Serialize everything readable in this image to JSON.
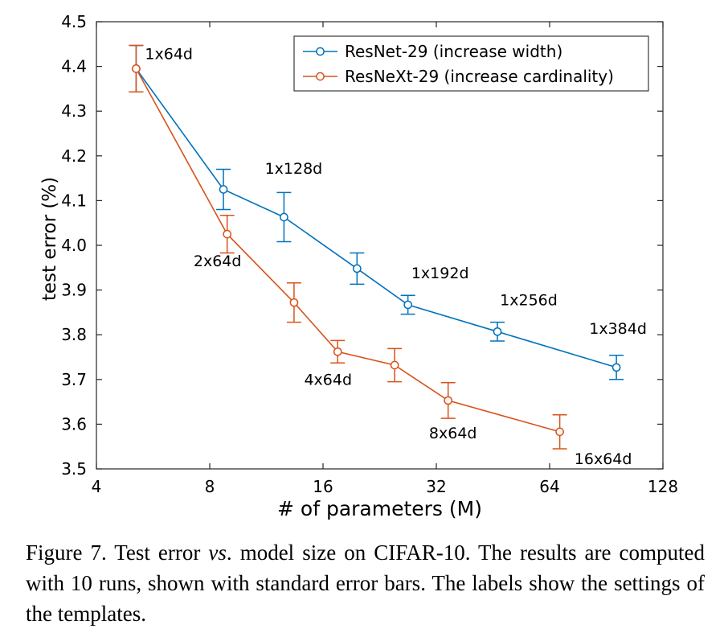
{
  "chart_data": {
    "type": "line",
    "xlabel": "# of parameters (M)",
    "ylabel": "test error (%)",
    "xscale": "log2",
    "xlim": [
      4,
      128
    ],
    "ylim": [
      3.5,
      4.5
    ],
    "xticks": [
      4,
      8,
      16,
      32,
      64,
      128
    ],
    "yticks": [
      3.5,
      3.6,
      3.7,
      3.8,
      3.9,
      4.0,
      4.1,
      4.2,
      4.3,
      4.4,
      4.5
    ],
    "ytick_labels": [
      "3.5",
      "3.6",
      "3.7",
      "3.8",
      "3.9",
      "4.0",
      "4.1",
      "4.2",
      "4.3",
      "4.4",
      "4.5"
    ],
    "grid": false,
    "legend_position": "top-right",
    "error_bars": true,
    "series": [
      {
        "name": "ResNet-29 (increase width)",
        "color": "#0072bd",
        "marker": "circle",
        "points": [
          {
            "x": 5.1,
            "y": 4.395,
            "err": 0.052,
            "label": "1x64d"
          },
          {
            "x": 8.7,
            "y": 4.125,
            "err": 0.045
          },
          {
            "x": 12.6,
            "y": 4.063,
            "err": 0.055,
            "label": "1x128d"
          },
          {
            "x": 19.7,
            "y": 3.948,
            "err": 0.035
          },
          {
            "x": 26.9,
            "y": 3.867,
            "err": 0.021,
            "label": "1x192d"
          },
          {
            "x": 46.5,
            "y": 3.807,
            "err": 0.021,
            "label": "1x256d"
          },
          {
            "x": 96.3,
            "y": 3.727,
            "err": 0.027,
            "label": "1x384d"
          }
        ]
      },
      {
        "name": "ResNeXt-29 (increase cardinality)",
        "color": "#d95319",
        "marker": "circle",
        "points": [
          {
            "x": 5.1,
            "y": 4.395,
            "err": 0.052
          },
          {
            "x": 8.9,
            "y": 4.025,
            "err": 0.042,
            "label": "2x64d"
          },
          {
            "x": 13.4,
            "y": 3.872,
            "err": 0.044
          },
          {
            "x": 17.5,
            "y": 3.762,
            "err": 0.025,
            "label": "4x64d"
          },
          {
            "x": 24.8,
            "y": 3.732,
            "err": 0.037
          },
          {
            "x": 34.4,
            "y": 3.653,
            "err": 0.04,
            "label": "8x64d"
          },
          {
            "x": 68.1,
            "y": 3.583,
            "err": 0.038,
            "label": "16x64d"
          }
        ]
      }
    ]
  },
  "caption": {
    "lead": "Figure 7. Test error ",
    "vs": "vs",
    "rest": ". model size on CIFAR-10.  The results are computed with 10 runs, shown with standard error bars. The labels show the settings of the templates."
  }
}
